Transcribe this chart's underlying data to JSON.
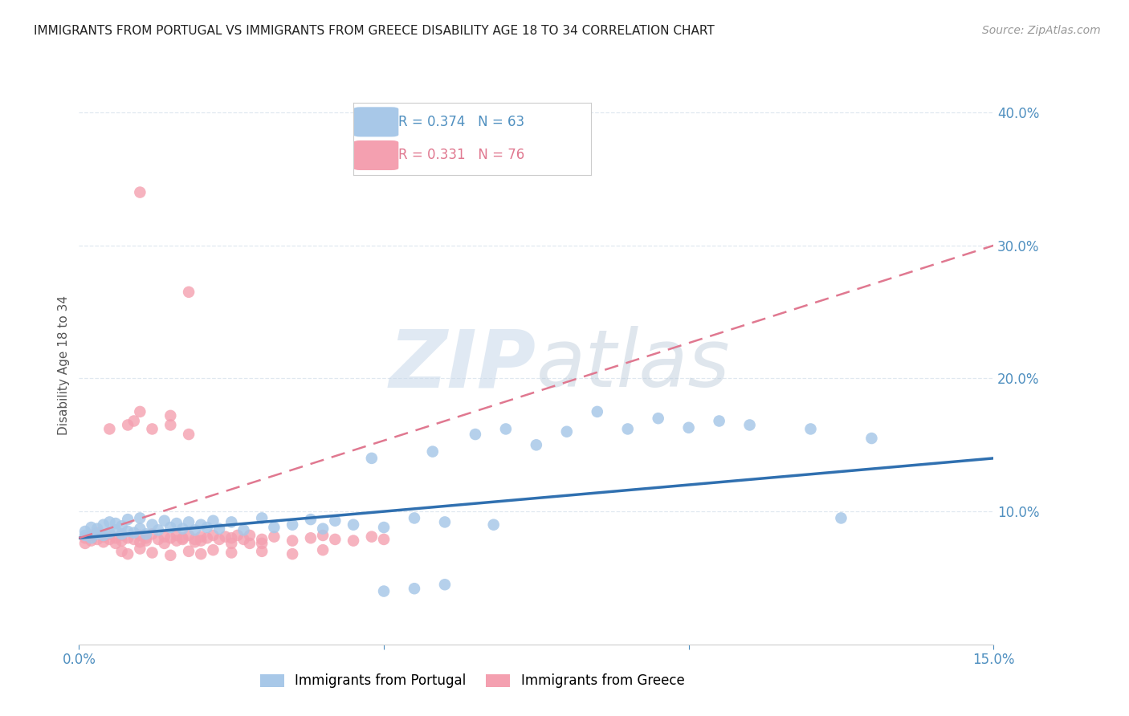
{
  "title": "IMMIGRANTS FROM PORTUGAL VS IMMIGRANTS FROM GREECE DISABILITY AGE 18 TO 34 CORRELATION CHART",
  "source": "Source: ZipAtlas.com",
  "ylabel": "Disability Age 18 to 34",
  "xlim": [
    0.0,
    0.15
  ],
  "ylim": [
    0.0,
    0.42
  ],
  "xtick_positions": [
    0.0,
    0.05,
    0.1,
    0.15
  ],
  "xtick_labels": [
    "0.0%",
    "",
    "",
    "15.0%"
  ],
  "yticks_right": [
    0.1,
    0.2,
    0.3,
    0.4
  ],
  "ytick_labels_right": [
    "10.0%",
    "20.0%",
    "30.0%",
    "40.0%"
  ],
  "portugal_color": "#a8c8e8",
  "greece_color": "#f4a0b0",
  "portugal_R": 0.374,
  "portugal_N": 63,
  "greece_R": 0.331,
  "greece_N": 76,
  "legend_label_portugal": "Immigrants from Portugal",
  "legend_label_greece": "Immigrants from Greece",
  "watermark_zip": "ZIP",
  "watermark_atlas": "atlas",
  "watermark_color": "#c8d8ea",
  "background_color": "#ffffff",
  "title_fontsize": 11,
  "axis_tick_color": "#5090c0",
  "grid_color": "#e0e8f0",
  "portugal_line_color": "#3070b0",
  "greece_line_color": "#e07890",
  "title_color": "#222222",
  "portugal_scatter": [
    [
      0.001,
      0.082
    ],
    [
      0.001,
      0.085
    ],
    [
      0.002,
      0.08
    ],
    [
      0.002,
      0.088
    ],
    [
      0.003,
      0.083
    ],
    [
      0.003,
      0.087
    ],
    [
      0.004,
      0.082
    ],
    [
      0.004,
      0.09
    ],
    [
      0.005,
      0.084
    ],
    [
      0.005,
      0.092
    ],
    [
      0.006,
      0.086
    ],
    [
      0.006,
      0.091
    ],
    [
      0.007,
      0.083
    ],
    [
      0.007,
      0.089
    ],
    [
      0.008,
      0.085
    ],
    [
      0.008,
      0.094
    ],
    [
      0.009,
      0.084
    ],
    [
      0.01,
      0.087
    ],
    [
      0.01,
      0.095
    ],
    [
      0.011,
      0.083
    ],
    [
      0.012,
      0.09
    ],
    [
      0.013,
      0.086
    ],
    [
      0.014,
      0.093
    ],
    [
      0.015,
      0.088
    ],
    [
      0.016,
      0.091
    ],
    [
      0.017,
      0.087
    ],
    [
      0.018,
      0.092
    ],
    [
      0.019,
      0.086
    ],
    [
      0.02,
      0.09
    ],
    [
      0.021,
      0.088
    ],
    [
      0.022,
      0.093
    ],
    [
      0.023,
      0.087
    ],
    [
      0.025,
      0.092
    ],
    [
      0.027,
      0.086
    ],
    [
      0.03,
      0.095
    ],
    [
      0.032,
      0.088
    ],
    [
      0.035,
      0.09
    ],
    [
      0.038,
      0.094
    ],
    [
      0.04,
      0.087
    ],
    [
      0.042,
      0.093
    ],
    [
      0.045,
      0.09
    ],
    [
      0.048,
      0.14
    ],
    [
      0.05,
      0.088
    ],
    [
      0.055,
      0.095
    ],
    [
      0.058,
      0.145
    ],
    [
      0.06,
      0.092
    ],
    [
      0.065,
      0.158
    ],
    [
      0.068,
      0.09
    ],
    [
      0.07,
      0.162
    ],
    [
      0.075,
      0.15
    ],
    [
      0.08,
      0.16
    ],
    [
      0.085,
      0.175
    ],
    [
      0.09,
      0.162
    ],
    [
      0.095,
      0.17
    ],
    [
      0.1,
      0.163
    ],
    [
      0.105,
      0.168
    ],
    [
      0.11,
      0.165
    ],
    [
      0.12,
      0.162
    ],
    [
      0.125,
      0.095
    ],
    [
      0.13,
      0.155
    ],
    [
      0.05,
      0.04
    ],
    [
      0.06,
      0.045
    ],
    [
      0.055,
      0.042
    ]
  ],
  "greece_scatter": [
    [
      0.001,
      0.08
    ],
    [
      0.001,
      0.076
    ],
    [
      0.002,
      0.082
    ],
    [
      0.002,
      0.078
    ],
    [
      0.003,
      0.079
    ],
    [
      0.003,
      0.084
    ],
    [
      0.004,
      0.081
    ],
    [
      0.004,
      0.077
    ],
    [
      0.005,
      0.083
    ],
    [
      0.005,
      0.079
    ],
    [
      0.005,
      0.162
    ],
    [
      0.006,
      0.08
    ],
    [
      0.006,
      0.076
    ],
    [
      0.007,
      0.082
    ],
    [
      0.007,
      0.078
    ],
    [
      0.008,
      0.08
    ],
    [
      0.008,
      0.165
    ],
    [
      0.009,
      0.079
    ],
    [
      0.009,
      0.168
    ],
    [
      0.01,
      0.082
    ],
    [
      0.01,
      0.077
    ],
    [
      0.01,
      0.175
    ],
    [
      0.011,
      0.08
    ],
    [
      0.011,
      0.078
    ],
    [
      0.012,
      0.083
    ],
    [
      0.012,
      0.162
    ],
    [
      0.013,
      0.079
    ],
    [
      0.014,
      0.081
    ],
    [
      0.014,
      0.076
    ],
    [
      0.015,
      0.08
    ],
    [
      0.015,
      0.165
    ],
    [
      0.015,
      0.172
    ],
    [
      0.016,
      0.082
    ],
    [
      0.016,
      0.078
    ],
    [
      0.017,
      0.079
    ],
    [
      0.017,
      0.08
    ],
    [
      0.018,
      0.082
    ],
    [
      0.018,
      0.158
    ],
    [
      0.019,
      0.079
    ],
    [
      0.019,
      0.077
    ],
    [
      0.02,
      0.081
    ],
    [
      0.02,
      0.078
    ],
    [
      0.021,
      0.08
    ],
    [
      0.022,
      0.082
    ],
    [
      0.023,
      0.079
    ],
    [
      0.024,
      0.081
    ],
    [
      0.025,
      0.08
    ],
    [
      0.025,
      0.076
    ],
    [
      0.026,
      0.082
    ],
    [
      0.027,
      0.079
    ],
    [
      0.028,
      0.076
    ],
    [
      0.028,
      0.082
    ],
    [
      0.03,
      0.079
    ],
    [
      0.03,
      0.076
    ],
    [
      0.032,
      0.081
    ],
    [
      0.035,
      0.078
    ],
    [
      0.038,
      0.08
    ],
    [
      0.04,
      0.082
    ],
    [
      0.042,
      0.079
    ],
    [
      0.045,
      0.078
    ],
    [
      0.048,
      0.081
    ],
    [
      0.05,
      0.079
    ],
    [
      0.007,
      0.07
    ],
    [
      0.008,
      0.068
    ],
    [
      0.01,
      0.072
    ],
    [
      0.012,
      0.069
    ],
    [
      0.015,
      0.067
    ],
    [
      0.018,
      0.07
    ],
    [
      0.02,
      0.068
    ],
    [
      0.022,
      0.071
    ],
    [
      0.025,
      0.069
    ],
    [
      0.03,
      0.07
    ],
    [
      0.035,
      0.068
    ],
    [
      0.04,
      0.071
    ],
    [
      0.01,
      0.34
    ],
    [
      0.018,
      0.265
    ]
  ],
  "port_line_x0": 0.0,
  "port_line_y0": 0.08,
  "port_line_x1": 0.15,
  "port_line_y1": 0.14,
  "greece_line_x0": 0.0,
  "greece_line_y0": 0.08,
  "greece_line_x1": 0.15,
  "greece_line_y1": 0.3
}
